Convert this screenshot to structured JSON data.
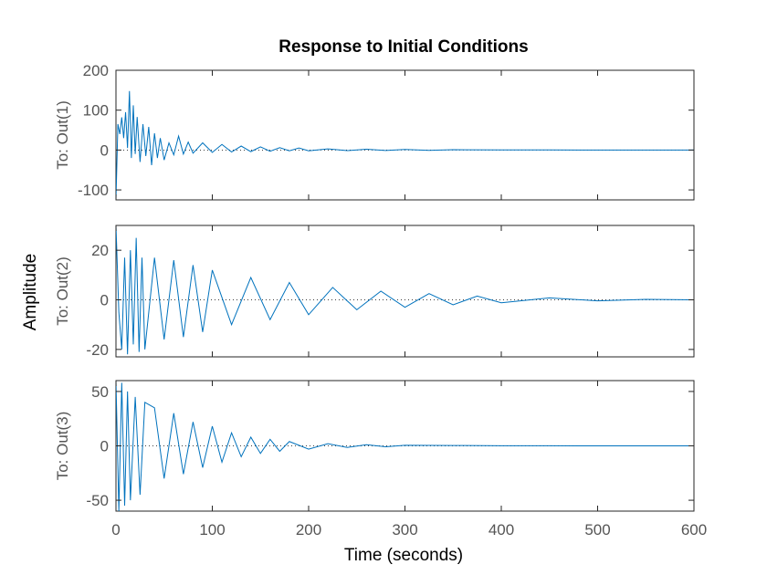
{
  "chart_data": {
    "type": "line",
    "title": "Response to Initial Conditions",
    "xlabel": "Time (seconds)",
    "ylabel": "Amplitude",
    "xlim": [
      0,
      600
    ],
    "xticks": [
      0,
      100,
      200,
      300,
      400,
      500,
      600
    ],
    "grid": false,
    "series_color": "#0072BD",
    "subplots": [
      {
        "ylabel": "To: Out(1)",
        "ylim": [
          -125,
          200
        ],
        "yticks": [
          -100,
          0,
          100,
          200
        ],
        "x": [
          0,
          2,
          4,
          6,
          8,
          10,
          12,
          14,
          16,
          18,
          20,
          22,
          25,
          28,
          31,
          34,
          37,
          40,
          43,
          46,
          50,
          55,
          60,
          65,
          70,
          75,
          80,
          90,
          100,
          110,
          120,
          130,
          140,
          150,
          160,
          170,
          180,
          190,
          200,
          220,
          240,
          260,
          280,
          300,
          325,
          350,
          400,
          450,
          500,
          550,
          600
        ],
        "y": [
          -125,
          65,
          40,
          82,
          30,
          95,
          5,
          148,
          -20,
          112,
          -10,
          83,
          -30,
          65,
          -15,
          58,
          -38,
          42,
          -20,
          30,
          -25,
          18,
          -12,
          35,
          -10,
          20,
          -8,
          18,
          -6,
          14,
          -5,
          10,
          -4,
          8,
          -3,
          6,
          -2,
          5,
          -2,
          3,
          -1.5,
          2,
          -1,
          1.5,
          -0.8,
          0.8,
          0.4,
          0.2,
          0.1,
          0.05,
          0
        ]
      },
      {
        "ylabel": "To: Out(2)",
        "ylim": [
          -23,
          30
        ],
        "yticks": [
          -20,
          0,
          20
        ],
        "x": [
          0,
          3,
          6,
          9,
          12,
          15,
          18,
          21,
          24,
          27,
          30,
          40,
          50,
          60,
          70,
          80,
          90,
          100,
          120,
          140,
          160,
          180,
          200,
          225,
          250,
          275,
          300,
          325,
          350,
          375,
          400,
          450,
          500,
          550,
          600
        ],
        "y": [
          30,
          -5,
          -20,
          17,
          -22,
          20,
          -18,
          25,
          -21,
          17,
          -20,
          17,
          -16,
          16,
          -15,
          14,
          -13,
          12,
          -10,
          9,
          -8,
          7,
          -6,
          5,
          -4,
          3.5,
          -3,
          2.5,
          -2,
          1.5,
          -1.2,
          0.8,
          -0.4,
          0.2,
          0
        ]
      },
      {
        "ylabel": "To: Out(3)",
        "ylim": [
          -60,
          60
        ],
        "yticks": [
          -50,
          0,
          50
        ],
        "x": [
          0,
          3,
          6,
          9,
          12,
          15,
          20,
          25,
          30,
          40,
          50,
          60,
          70,
          80,
          90,
          100,
          110,
          120,
          130,
          140,
          150,
          160,
          170,
          180,
          200,
          220,
          240,
          260,
          280,
          300,
          350,
          400,
          450,
          500,
          600
        ],
        "y": [
          60,
          -60,
          58,
          -55,
          50,
          -50,
          45,
          -45,
          40,
          35,
          -30,
          30,
          -26,
          22,
          -20,
          18,
          -15,
          12,
          -10,
          8,
          -7,
          6,
          -5,
          4,
          -3,
          2,
          -1.5,
          1,
          -0.8,
          0.5,
          0.3,
          0.15,
          0.08,
          0.03,
          0
        ]
      }
    ]
  }
}
